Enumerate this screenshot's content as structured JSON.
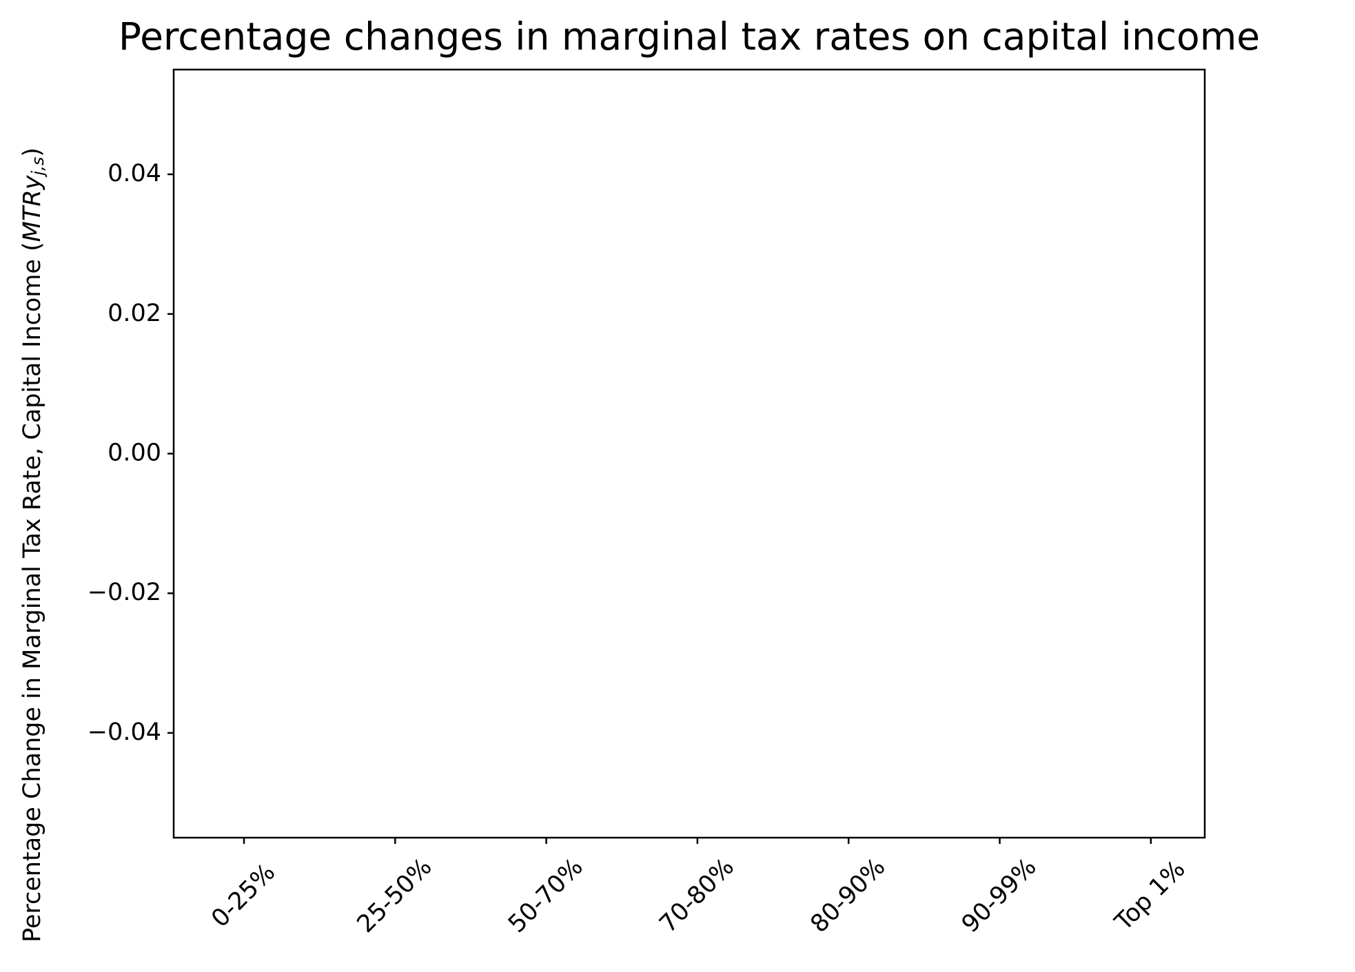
{
  "chart_data": {
    "type": "bar",
    "title": "Percentage changes in marginal tax rates on capital income",
    "ylabel": {
      "text": "Percentage Change in Marginal Tax Rate, Capital Income (",
      "symbol": "MTRy",
      "subscript": "j,s",
      "close": ")"
    },
    "categories": [
      "0-25%",
      "25-50%",
      "50-70%",
      "70-80%",
      "80-90%",
      "90-99%",
      "Top 1%"
    ],
    "values": [
      0,
      0,
      0,
      0,
      0,
      0,
      0
    ],
    "color": "#1f77b4",
    "ylim": [
      -0.055,
      0.055
    ],
    "yticks": [
      {
        "value": -0.04,
        "label": "−0.04"
      },
      {
        "value": -0.02,
        "label": "−0.02"
      },
      {
        "value": 0,
        "label": "0.00"
      },
      0.02,
      0.04
    ],
    "grid": false
  }
}
